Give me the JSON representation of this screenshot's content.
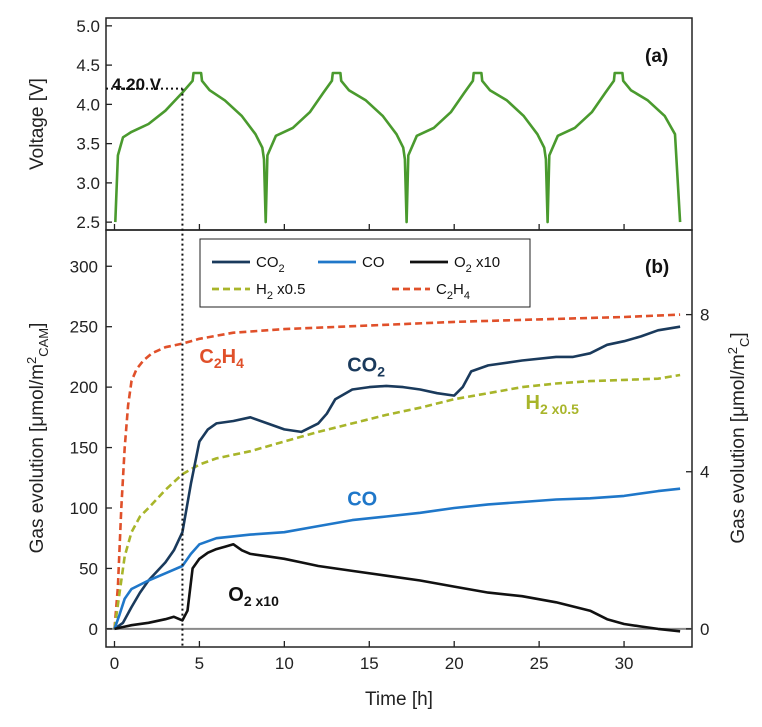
{
  "chart_data": [
    {
      "id": "a",
      "type": "line",
      "panel_label": "(a)",
      "ylabel": "Voltage [V]",
      "ylim": [
        2.4,
        5.1
      ],
      "xlim": [
        -0.5,
        34.0
      ],
      "yticks": [
        "2.5",
        "3.0",
        "3.5",
        "4.0",
        "4.5",
        "5.0"
      ],
      "annotation": "4.20 V",
      "annotation_value": 4.2,
      "annotation_time": 4.0,
      "series": [
        {
          "name": "Voltage",
          "color": "#4a9a2e",
          "x": [
            0.05,
            0.2,
            0.5,
            1.0,
            2.0,
            3.0,
            4.0,
            4.6,
            4.65,
            5.1,
            5.15,
            5.6,
            6.5,
            7.5,
            8.3,
            8.7,
            8.8,
            8.9,
            9.0,
            9.5,
            10.5,
            11.5,
            12.3,
            12.8,
            12.85,
            13.3,
            13.35,
            13.8,
            14.8,
            15.8,
            16.6,
            17.0,
            17.1,
            17.2,
            17.3,
            17.8,
            18.8,
            19.8,
            20.6,
            21.1,
            21.15,
            21.6,
            21.65,
            22.1,
            23.1,
            24.1,
            24.9,
            25.3,
            25.4,
            25.5,
            25.6,
            26.1,
            27.1,
            28.1,
            28.9,
            29.4,
            29.45,
            29.9,
            29.95,
            30.4,
            31.4,
            32.4,
            33.0,
            33.3
          ],
          "y": [
            2.5,
            3.35,
            3.58,
            3.65,
            3.75,
            3.92,
            4.15,
            4.3,
            4.4,
            4.4,
            4.3,
            4.18,
            4.05,
            3.85,
            3.62,
            3.45,
            3.3,
            2.5,
            3.35,
            3.6,
            3.7,
            3.9,
            4.15,
            4.3,
            4.4,
            4.4,
            4.3,
            4.18,
            4.05,
            3.85,
            3.62,
            3.45,
            3.3,
            2.5,
            3.35,
            3.6,
            3.7,
            3.9,
            4.15,
            4.3,
            4.4,
            4.4,
            4.3,
            4.18,
            4.05,
            3.85,
            3.62,
            3.45,
            3.3,
            2.5,
            3.35,
            3.6,
            3.7,
            3.9,
            4.15,
            4.3,
            4.4,
            4.4,
            4.3,
            4.18,
            4.05,
            3.85,
            3.62,
            2.5
          ]
        }
      ]
    },
    {
      "id": "b",
      "type": "line",
      "panel_label": "(b)",
      "xlabel": "Time [h]",
      "ylabel": "Gas evolution [μmol/m²CAM]",
      "ylabel_parts": [
        "Gas evolution [μmol/m",
        "2",
        "CAM",
        "]"
      ],
      "y2label_parts": [
        "Gas evolution [μmol/m",
        "2",
        "C",
        "]"
      ],
      "xlim": [
        -0.5,
        34.0
      ],
      "ylim": [
        -15,
        330
      ],
      "y2lim": [
        -0.4615,
        10.154
      ],
      "xticks": [
        "0",
        "5",
        "10",
        "15",
        "20",
        "25",
        "30"
      ],
      "yticks": [
        "0",
        "50",
        "100",
        "150",
        "200",
        "250",
        "300"
      ],
      "y2ticks": [
        "0",
        "4",
        "8"
      ],
      "vline_time": 4.0,
      "legend": [
        {
          "label_main": "CO",
          "label_sub": "2",
          "label_tail": "",
          "color": "#1a3a5c",
          "dash": false
        },
        {
          "label_main": "CO",
          "label_sub": "",
          "label_tail": "",
          "color": "#1f77c9",
          "dash": false
        },
        {
          "label_main": "O",
          "label_sub": "2",
          "label_tail": " x10",
          "color": "#111111",
          "dash": false
        },
        {
          "label_main": "H",
          "label_sub": "2",
          "label_tail": " x0.5",
          "color": "#a8b52a",
          "dash": true
        },
        {
          "label_main": "C",
          "label_sub": "2",
          "label_tail": "H",
          "label_sub2": "4",
          "color": "#e0502a",
          "dash": true
        }
      ],
      "annotations": [
        {
          "main": "C",
          "sub": "2",
          "tail": "H",
          "sub2": "4",
          "color": "#e0502a",
          "at": [
            5.0,
            220
          ]
        },
        {
          "main": "CO",
          "sub": "2",
          "tail": "",
          "sub2": "",
          "color": "#1a3a5c",
          "at": [
            13.7,
            213
          ]
        },
        {
          "main": "H",
          "sub": "2 x0.5",
          "tail": "",
          "sub2": "",
          "color": "#a8b52a",
          "at": [
            24.2,
            182
          ]
        },
        {
          "main": "CO",
          "sub": "",
          "tail": "",
          "sub2": "",
          "color": "#1f77c9",
          "at": [
            13.7,
            102
          ]
        },
        {
          "main": "O",
          "sub": "2 x10",
          "tail": "",
          "sub2": "",
          "color": "#111111",
          "at": [
            6.7,
            23
          ]
        }
      ],
      "series": [
        {
          "name": "C2H4",
          "color": "#e0502a",
          "dash": true,
          "x": [
            0.0,
            0.2,
            0.4,
            0.6,
            0.8,
            1.0,
            1.3,
            1.7,
            2.2,
            3.0,
            4.0,
            5.0,
            7.0,
            10.0,
            15.0,
            20.0,
            25.0,
            30.0,
            33.3
          ],
          "y": [
            0,
            35,
            100,
            150,
            185,
            205,
            215,
            222,
            228,
            233,
            236,
            240,
            245,
            248,
            251,
            254,
            256,
            258,
            260
          ]
        },
        {
          "name": "H2 x0.5",
          "color": "#a8b52a",
          "dash": true,
          "x": [
            0.0,
            0.3,
            0.6,
            1.0,
            1.5,
            2.0,
            3.0,
            4.0,
            5.0,
            6.0,
            8.0,
            10.0,
            12.0,
            14.0,
            16.0,
            18.0,
            20.0,
            22.0,
            24.0,
            26.0,
            28.0,
            30.0,
            32.0,
            33.3
          ],
          "y": [
            0,
            30,
            60,
            80,
            93,
            100,
            115,
            128,
            136,
            141,
            147,
            155,
            163,
            170,
            177,
            183,
            190,
            195,
            200,
            203,
            205,
            206,
            207,
            210
          ]
        },
        {
          "name": "CO2",
          "color": "#1a3a5c",
          "dash": false,
          "x": [
            0.0,
            0.5,
            1.0,
            1.5,
            2.0,
            3.0,
            3.5,
            4.0,
            4.5,
            5.0,
            5.5,
            6.0,
            7.0,
            8.0,
            9.0,
            10.0,
            11.0,
            12.0,
            12.5,
            13.0,
            14.0,
            15.0,
            16.0,
            17.0,
            18.0,
            19.0,
            20.0,
            20.5,
            21.0,
            22.0,
            24.0,
            26.0,
            27.0,
            28.0,
            29.0,
            30.0,
            31.0,
            32.0,
            33.3
          ],
          "y": [
            0,
            5,
            18,
            30,
            40,
            55,
            65,
            80,
            120,
            155,
            165,
            170,
            172,
            175,
            170,
            165,
            163,
            170,
            178,
            190,
            198,
            200,
            201,
            200,
            198,
            195,
            193,
            200,
            213,
            218,
            222,
            225,
            225,
            228,
            235,
            238,
            242,
            247,
            250
          ]
        },
        {
          "name": "CO",
          "color": "#1f77c9",
          "dash": false,
          "x": [
            0.0,
            0.3,
            0.6,
            1.0,
            2.0,
            3.0,
            4.0,
            4.5,
            5.0,
            6.0,
            8.0,
            10.0,
            12.0,
            14.0,
            16.0,
            18.0,
            20.0,
            22.0,
            24.0,
            26.0,
            28.0,
            30.0,
            32.0,
            33.3
          ],
          "y": [
            0,
            12,
            25,
            33,
            40,
            46,
            52,
            62,
            70,
            75,
            78,
            80,
            85,
            90,
            93,
            96,
            100,
            103,
            105,
            107,
            108,
            110,
            114,
            116
          ]
        },
        {
          "name": "O2 x10",
          "color": "#111111",
          "dash": false,
          "x": [
            0.0,
            1.0,
            2.0,
            3.0,
            3.5,
            4.0,
            4.3,
            4.6,
            5.0,
            5.5,
            6.0,
            6.5,
            7.0,
            7.5,
            8.0,
            9.0,
            10.0,
            11.0,
            12.0,
            14.0,
            16.0,
            18.0,
            20.0,
            22.0,
            24.0,
            26.0,
            28.0,
            29.0,
            30.0,
            31.0,
            32.0,
            33.3
          ],
          "y": [
            0,
            3,
            5,
            8,
            10,
            7,
            15,
            50,
            58,
            63,
            66,
            68,
            70,
            65,
            62,
            60,
            58,
            55,
            52,
            48,
            44,
            40,
            35,
            30,
            27,
            22,
            15,
            8,
            4,
            2,
            0,
            -2
          ]
        }
      ]
    }
  ]
}
